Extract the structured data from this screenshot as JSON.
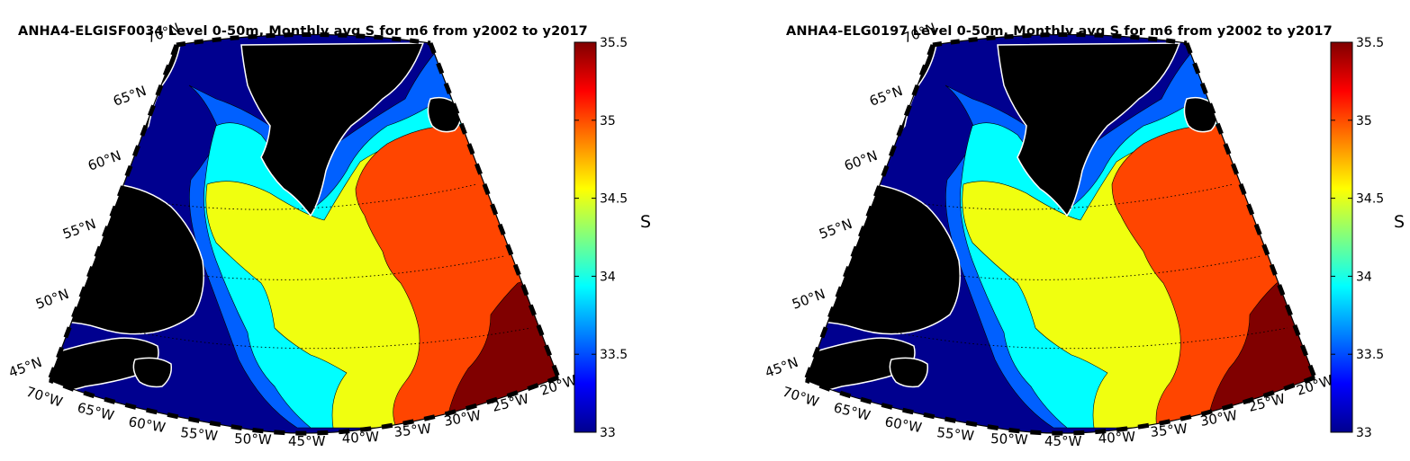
{
  "colors": {
    "land": "#000000",
    "s_lt_33_25": "#00008f",
    "s_33_25_33_5": "#0060ff",
    "s_33_5_34": "#00ffff",
    "s_34_34_5": "#f0ff0f",
    "s_34_5_35_5": "#ff4500",
    "s_gt_35_25": "#800000"
  },
  "colorbar": {
    "label": "S",
    "ticks": [
      "35.5",
      "35",
      "34.5",
      "34",
      "33.5",
      "33"
    ],
    "range": [
      33,
      35.5
    ]
  },
  "lat_labels": [
    "70°N",
    "65°N",
    "60°N",
    "55°N",
    "50°N",
    "45°N"
  ],
  "lon_labels": [
    "70°W",
    "65°W",
    "60°W",
    "55°W",
    "50°W",
    "45°W",
    "40°W",
    "35°W",
    "30°W",
    "25°W",
    "20°W"
  ],
  "panels": [
    {
      "title": "ANHA4-ELGISF0034 Level 0-50m, Monthly avg S for m6 from y2002 to y2017"
    },
    {
      "title": "ANHA4-ELG0197 Level 0-50m, Monthly avg S for m6 from y2002 to y2017"
    }
  ]
}
